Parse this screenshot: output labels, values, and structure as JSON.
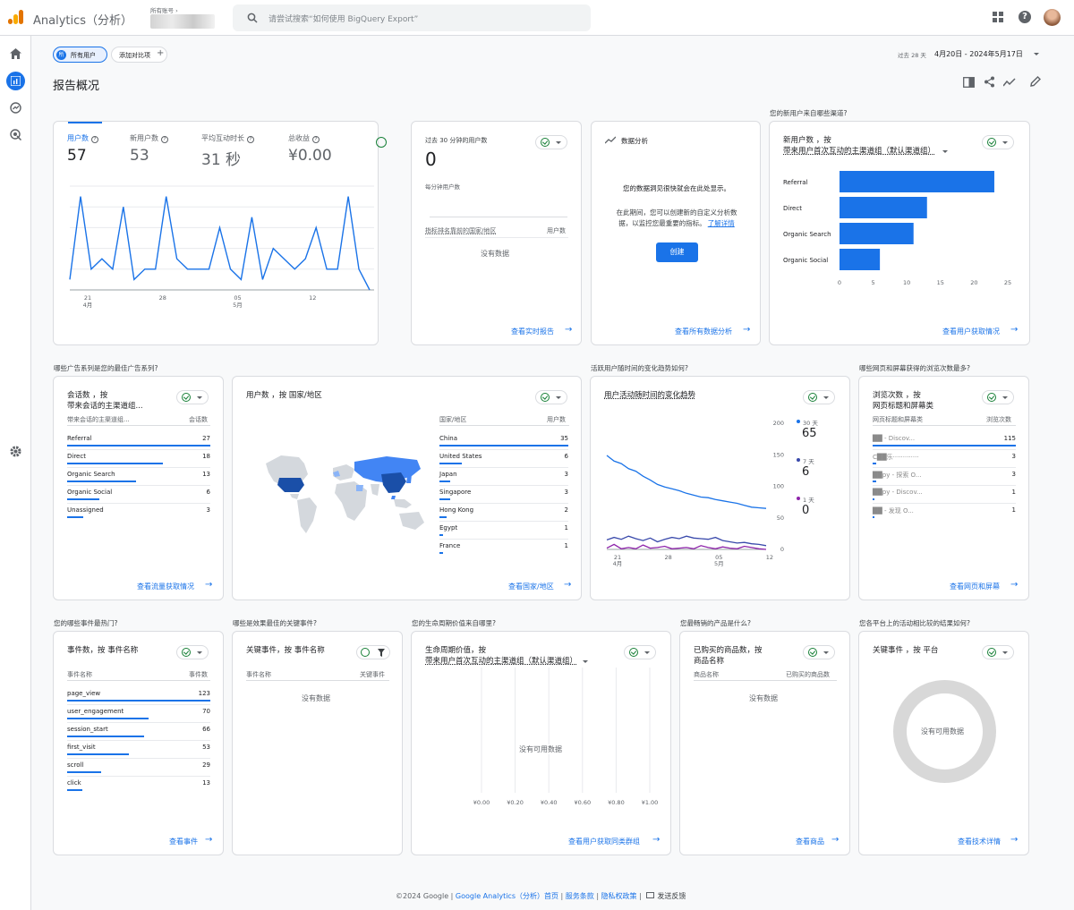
{
  "app": {
    "title": "Analytics（分析）",
    "account_label": "所有账号 ›",
    "search_placeholder": "请尝试搜索“如何使用 BigQuery Export”"
  },
  "toolbar": {
    "segment": "所有用户",
    "segment_avatar": "所",
    "add_compare": "添加对比项",
    "date_prefix": "过去 28 天",
    "date_range": "4月20日 - 2024年5月17日",
    "page_title": "报告概况"
  },
  "overview": {
    "metrics": [
      {
        "label": "用户数",
        "value": "57"
      },
      {
        "label": "新用户数",
        "value": "53"
      },
      {
        "label": "平均互动时长",
        "value": "31 秒"
      },
      {
        "label": "总收益",
        "value": "¥0.00"
      }
    ],
    "chart_data": {
      "type": "line",
      "series": [
        {
          "values": [
            1,
            9,
            2,
            3,
            2,
            8,
            1,
            2,
            2,
            9,
            3,
            2,
            2,
            2,
            6,
            2,
            1,
            7,
            1,
            4,
            3,
            2,
            3,
            6,
            2,
            2,
            9,
            2,
            0
          ]
        }
      ],
      "ylim": [
        0,
        10
      ],
      "yticks": [
        "10",
        "8",
        "6",
        "4",
        "2",
        "0"
      ],
      "xticks": [
        {
          "day": "21",
          "month": "4月"
        },
        {
          "day": "28",
          "month": ""
        },
        {
          "day": "05",
          "month": "5月"
        },
        {
          "day": "12",
          "month": ""
        }
      ]
    }
  },
  "realtime": {
    "title": "过去 30 分钟的用户数",
    "value": "0",
    "subtitle": "每分钟用户数",
    "col1": "指标排名靠前的国家/地区",
    "col2": "用户数",
    "no_data": "没有数据",
    "link": "查看实时报告"
  },
  "insights": {
    "title": "数据分析",
    "msg1": "您的数据洞见很快就会在此处显示。",
    "msg2": "在此期间，您可以创建新的自定义分析数",
    "msg3": "据，以监控您最重要的指标。",
    "learn_more": "了解详情",
    "button": "创建",
    "link": "查看所有数据分析"
  },
  "new_users": {
    "question": "您的新用户来自哪些渠道?",
    "title1": "新用户数 ，按",
    "title2": "带来用户首次互动的主渠道组（默认渠道组）",
    "chart_data": {
      "type": "bar",
      "categories": [
        "Referral",
        "Direct",
        "Organic Search",
        "Organic Social"
      ],
      "values": [
        23,
        13,
        11,
        6
      ],
      "xlim": [
        0,
        25
      ],
      "xticks": [
        "0",
        "5",
        "10",
        "15",
        "20",
        "25"
      ]
    },
    "link": "查看用户获取情况"
  },
  "sessions": {
    "question": "哪些广告系列是您的最佳广告系列?",
    "title1": "会话数 ，按",
    "title2": "带来会话的主渠道组...",
    "col1": "带来会话的主渠道组...",
    "col2": "会话数",
    "rows": [
      {
        "name": "Referral",
        "value": "27"
      },
      {
        "name": "Direct",
        "value": "18"
      },
      {
        "name": "Organic Search",
        "value": "13"
      },
      {
        "name": "Organic Social",
        "value": "6"
      },
      {
        "name": "Unassigned",
        "value": "3"
      }
    ],
    "link": "查看流量获取情况"
  },
  "countries": {
    "title": "用户数 ，按 国家/地区",
    "col1": "国家/地区",
    "col2": "用户数",
    "rows": [
      {
        "name": "China",
        "value": "35"
      },
      {
        "name": "United States",
        "value": "6"
      },
      {
        "name": "Japan",
        "value": "3"
      },
      {
        "name": "Singapore",
        "value": "3"
      },
      {
        "name": "Hong Kong",
        "value": "2"
      },
      {
        "name": "Egypt",
        "value": "1"
      },
      {
        "name": "France",
        "value": "1"
      }
    ],
    "link": "查看国家/地区"
  },
  "active_users": {
    "question": "活跃用户随时间的变化趋势如何?",
    "title": "用户活动随时间的变化趋势",
    "legend": [
      {
        "label": "30 天",
        "value": "65",
        "color": "#1a73e8"
      },
      {
        "label": "7 天",
        "value": "6",
        "color": "#3949ab"
      },
      {
        "label": "1 天",
        "value": "0",
        "color": "#8e24aa"
      }
    ],
    "chart_data": {
      "type": "line",
      "series": [
        {
          "name": "30 天",
          "values": [
            149,
            140,
            136,
            128,
            124,
            116,
            110,
            103,
            99,
            96,
            93,
            89,
            86,
            83,
            82,
            79,
            77,
            75,
            73,
            70,
            67,
            66,
            65
          ]
        },
        {
          "name": "7 天",
          "values": [
            15,
            19,
            16,
            21,
            17,
            14,
            18,
            12,
            16,
            19,
            17,
            21,
            18,
            17,
            16,
            19,
            14,
            12,
            10,
            11,
            9,
            8,
            6
          ]
        },
        {
          "name": "1 天",
          "values": [
            2,
            8,
            1,
            3,
            1,
            7,
            2,
            3,
            5,
            1,
            2,
            3,
            1,
            6,
            3,
            1,
            4,
            2,
            1,
            5,
            3,
            1,
            0
          ]
        }
      ],
      "ylim": [
        0,
        200
      ],
      "yticks": [
        "200",
        "150",
        "100",
        "50",
        "0"
      ],
      "xticks": [
        {
          "day": "21",
          "month": "4月"
        },
        {
          "day": "28",
          "month": ""
        },
        {
          "day": "05",
          "month": "5月"
        },
        {
          "day": "12",
          "month": ""
        }
      ]
    }
  },
  "pages": {
    "question": "哪些网页和屏幕获得的浏览次数最多?",
    "title1": "浏览次数 ，按",
    "title2": "网页标题和屏幕类",
    "col1": "网页标题和屏幕类",
    "col2": "浏览次数",
    "rows": [
      {
        "name": "██ - Discov...",
        "value": "115"
      },
      {
        "name": "C██乐·············",
        "value": "3"
      },
      {
        "name": "██py - 探索 O...",
        "value": "3"
      },
      {
        "name": "██py - Discov...",
        "value": "1"
      },
      {
        "name": "██ - 发现 O...",
        "value": "1"
      }
    ],
    "link": "查看网页和屏幕"
  },
  "events": {
    "question": "您的哪些事件最热门?",
    "title": "事件数，按 事件名称",
    "col1": "事件名称",
    "col2": "事件数",
    "rows": [
      {
        "name": "page_view",
        "value": "123"
      },
      {
        "name": "user_engagement",
        "value": "70"
      },
      {
        "name": "session_start",
        "value": "66"
      },
      {
        "name": "first_visit",
        "value": "53"
      },
      {
        "name": "scroll",
        "value": "29"
      },
      {
        "name": "click",
        "value": "13"
      }
    ],
    "link": "查看事件"
  },
  "key_events": {
    "question": "哪些是效果最佳的关键事件?",
    "title": "关键事件，按 事件名称",
    "col1": "事件名称",
    "col2": "关键事件",
    "no_data": "没有数据"
  },
  "ltv": {
    "question": "您的生命周期价值来自哪里?",
    "title1": "生命周期价值，按",
    "title2": "带来用户首次互动的主渠道组（默认渠道组）",
    "no_data": "没有可用数据",
    "xticks": [
      "¥0.00",
      "¥0.20",
      "¥0.40",
      "¥0.60",
      "¥0.80",
      "¥1.00"
    ],
    "link": "查看用户获取同类群组"
  },
  "products": {
    "question": "您最畅销的产品是什么?",
    "title1": "已购买的商品数，按",
    "title2": "商品名称",
    "col1": "商品名称",
    "col2": "已购买的商品数",
    "no_data": "没有数据",
    "link": "查看商品"
  },
  "platform": {
    "question": "您各平台上的活动相比较的结果如何?",
    "title": "关键事件 ，按 平台",
    "no_data": "没有可用数据",
    "link": "查看技术详情"
  },
  "footer": {
    "copyright": "©2024 Google | ",
    "home": "Google Analytics（分析）首页",
    "terms": "服务条款",
    "privacy": "隐私权政策",
    "feedback": "发送反馈"
  }
}
